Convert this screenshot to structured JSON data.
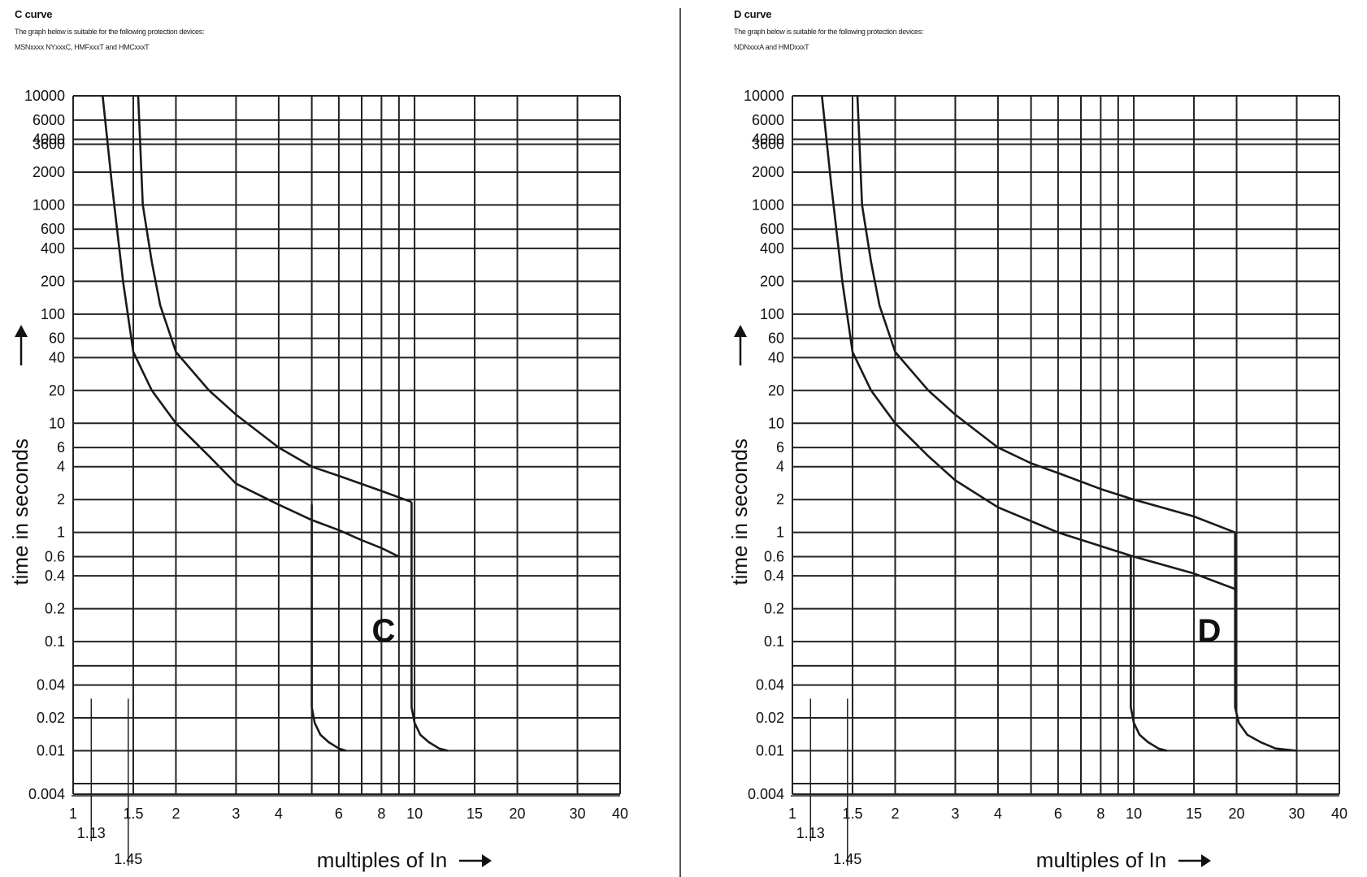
{
  "panels": [
    {
      "id": "c",
      "title": "C curve",
      "note_line1": "The graph below is suitable for the following protection devices:",
      "note_line2": "MSNxxxx  NYxxxC, HMFxxxT and HMCxxxT",
      "ylabel": "time in seconds",
      "xlabel": "multiples of In",
      "big_label": "C"
    },
    {
      "id": "d",
      "title": "D curve",
      "note_line1": "The graph below is suitable for the following protection devices:",
      "note_line2": "NDNxxxA and HMDxxxT",
      "ylabel": "time in seconds",
      "xlabel": "multiples of In",
      "big_label": "D"
    }
  ],
  "chart_data": [
    {
      "type": "line",
      "title": "C curve",
      "xlabel": "multiples of In",
      "ylabel": "time in seconds",
      "x_scale": "log",
      "y_scale": "log",
      "xlim": [
        1,
        40
      ],
      "ylim": [
        0.004,
        10000
      ],
      "grid": true,
      "legend": "none",
      "x_ticks": [
        1,
        1.5,
        2,
        3,
        4,
        6,
        8,
        10,
        15,
        20,
        30,
        40
      ],
      "x_ticks_text": [
        "1",
        "1.5",
        "2",
        "3",
        "4",
        "6",
        "8",
        "10",
        "15",
        "20",
        "30",
        "40"
      ],
      "x_grid": [
        1,
        1.5,
        2,
        3,
        4,
        5,
        6,
        7,
        8,
        9,
        10,
        15,
        20,
        30,
        40
      ],
      "y_ticks": [
        10000,
        6000,
        4000,
        3600,
        2000,
        1000,
        600,
        400,
        200,
        100,
        60,
        40,
        20,
        10,
        6,
        4,
        2,
        1,
        0.6,
        0.4,
        0.2,
        0.1,
        0.04,
        0.02,
        0.01,
        0.004
      ],
      "y_ticks_text": [
        "10000",
        "6000",
        "4000",
        "3600",
        "2000",
        "1000",
        "600",
        "400",
        "200",
        "100",
        "60",
        "40",
        "20",
        "10",
        "6",
        "4",
        "2",
        "1",
        "0.6",
        "0.4",
        "0.2",
        "0.1",
        "0.04",
        "0.02",
        "0.01",
        "0.004"
      ],
      "y_grid": [
        10000,
        6000,
        4000,
        3600,
        2000,
        1000,
        600,
        400,
        200,
        100,
        60,
        40,
        20,
        10,
        6,
        4,
        2,
        1,
        0.6,
        0.4,
        0.2,
        0.1,
        0.06,
        0.04,
        0.02,
        0.01,
        0.005,
        0.004
      ],
      "marker_hline": {
        "y": 3600,
        "x_end": 1.7
      },
      "markers": [
        {
          "x": 1.13,
          "label": "1.13",
          "y_top": 0.03
        },
        {
          "x": 1.45,
          "label": "1.45",
          "y_top": 0.03
        }
      ],
      "series": [
        {
          "name": "",
          "x": [
            1.22,
            1.3,
            1.4,
            1.5,
            1.7,
            2,
            2.5,
            3,
            4,
            5,
            6,
            7,
            8,
            9
          ],
          "y": [
            10000,
            1500,
            200,
            45,
            20,
            10,
            5,
            2.8,
            1.8,
            1.3,
            1.05,
            0.85,
            0.72,
            0.6
          ]
        },
        {
          "name": "",
          "x": [
            1.55,
            1.6,
            1.7,
            1.8,
            2,
            2.5,
            3,
            4,
            5,
            6,
            8,
            9.8
          ],
          "y": [
            10000,
            1000,
            300,
            120,
            45,
            20,
            12,
            6,
            4,
            3.3,
            2.4,
            1.9
          ]
        },
        {
          "name": "",
          "x": [
            5,
            5,
            5,
            5.1,
            5.3,
            5.6,
            6,
            6.3
          ],
          "y": [
            1.8,
            0.3,
            0.025,
            0.018,
            0.014,
            0.012,
            0.0105,
            0.01
          ]
        },
        {
          "name": "",
          "x": [
            9.8,
            9.8,
            9.8,
            10,
            10.4,
            11,
            11.8,
            12.5
          ],
          "y": [
            1.9,
            0.3,
            0.025,
            0.018,
            0.014,
            0.012,
            0.0105,
            0.01
          ]
        }
      ]
    },
    {
      "type": "line",
      "title": "D curve",
      "xlabel": "multiples of In",
      "ylabel": "time in seconds",
      "x_scale": "log",
      "y_scale": "log",
      "xlim": [
        1,
        40
      ],
      "ylim": [
        0.004,
        10000
      ],
      "grid": true,
      "legend": "none",
      "x_ticks": [
        1,
        1.5,
        2,
        3,
        4,
        6,
        8,
        10,
        15,
        20,
        30,
        40
      ],
      "x_ticks_text": [
        "1",
        "1.5",
        "2",
        "3",
        "4",
        "6",
        "8",
        "10",
        "15",
        "20",
        "30",
        "40"
      ],
      "x_grid": [
        1,
        1.5,
        2,
        3,
        4,
        5,
        6,
        7,
        8,
        9,
        10,
        15,
        20,
        30,
        40
      ],
      "y_ticks": [
        10000,
        6000,
        4000,
        3600,
        2000,
        1000,
        600,
        400,
        200,
        100,
        60,
        40,
        20,
        10,
        6,
        4,
        2,
        1,
        0.6,
        0.4,
        0.2,
        0.1,
        0.04,
        0.02,
        0.01,
        0.004
      ],
      "y_ticks_text": [
        "10000",
        "6000",
        "4000",
        "3600",
        "2000",
        "1000",
        "600",
        "400",
        "200",
        "100",
        "60",
        "40",
        "20",
        "10",
        "6",
        "4",
        "2",
        "1",
        "0.6",
        "0.4",
        "0.2",
        "0.1",
        "0.04",
        "0.02",
        "0.01",
        "0.004"
      ],
      "y_grid": [
        10000,
        6000,
        4000,
        3600,
        2000,
        1000,
        600,
        400,
        200,
        100,
        60,
        40,
        20,
        10,
        6,
        4,
        2,
        1,
        0.6,
        0.4,
        0.2,
        0.1,
        0.06,
        0.04,
        0.02,
        0.01,
        0.005,
        0.004
      ],
      "marker_hline": {
        "y": 3600,
        "x_end": 1.7
      },
      "markers": [
        {
          "x": 1.13,
          "label": "1.13",
          "y_top": 0.03
        },
        {
          "x": 1.45,
          "label": "1.45",
          "y_top": 0.03
        }
      ],
      "series": [
        {
          "name": "",
          "x": [
            1.22,
            1.3,
            1.4,
            1.5,
            1.7,
            2,
            2.5,
            3,
            4,
            6,
            8,
            10,
            15,
            20
          ],
          "y": [
            10000,
            1500,
            200,
            45,
            20,
            10,
            5,
            3,
            1.7,
            1,
            0.75,
            0.6,
            0.42,
            0.3
          ]
        },
        {
          "name": "",
          "x": [
            1.55,
            1.6,
            1.7,
            1.8,
            2,
            2.5,
            3,
            4,
            5,
            6,
            8,
            10,
            15,
            19.8
          ],
          "y": [
            10000,
            1000,
            300,
            120,
            45,
            20,
            12,
            6,
            4.3,
            3.5,
            2.5,
            2,
            1.4,
            1
          ]
        },
        {
          "name": "",
          "x": [
            9.8,
            9.8,
            9.8,
            10,
            10.4,
            11,
            11.8,
            12.5
          ],
          "y": [
            0.6,
            0.3,
            0.025,
            0.018,
            0.014,
            0.012,
            0.0105,
            0.01
          ]
        },
        {
          "name": "",
          "x": [
            19.8,
            19.8,
            19.8,
            20.3,
            21.5,
            23.5,
            26,
            30
          ],
          "y": [
            1,
            0.3,
            0.025,
            0.018,
            0.014,
            0.012,
            0.0105,
            0.01
          ]
        }
      ]
    }
  ]
}
